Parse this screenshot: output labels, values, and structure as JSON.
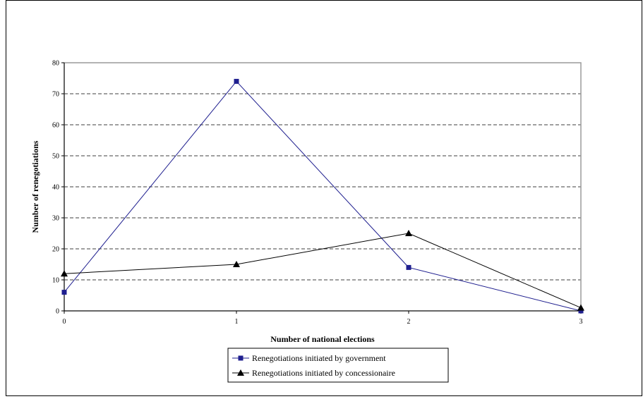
{
  "chart_data": {
    "type": "line",
    "title": "",
    "xlabel": "Number of national elections",
    "ylabel": "Number of renegotiations",
    "x": [
      0,
      1,
      2,
      3
    ],
    "xlim": [
      0,
      3
    ],
    "ylim": [
      0,
      80
    ],
    "yticks": [
      0,
      10,
      20,
      30,
      40,
      50,
      60,
      70,
      80
    ],
    "xticks": [
      0,
      1,
      2,
      3
    ],
    "grid": "horizontal dashed",
    "legend_placement": "bottom-center",
    "series": [
      {
        "name": "Renegotiations initiated by government",
        "values": [
          6,
          74,
          14,
          0
        ],
        "color": "#1f1f8f",
        "marker": "square"
      },
      {
        "name": "Renegotiations initiated by concessionaire",
        "values": [
          12,
          15,
          25,
          1
        ],
        "color": "#000000",
        "marker": "triangle"
      }
    ]
  }
}
